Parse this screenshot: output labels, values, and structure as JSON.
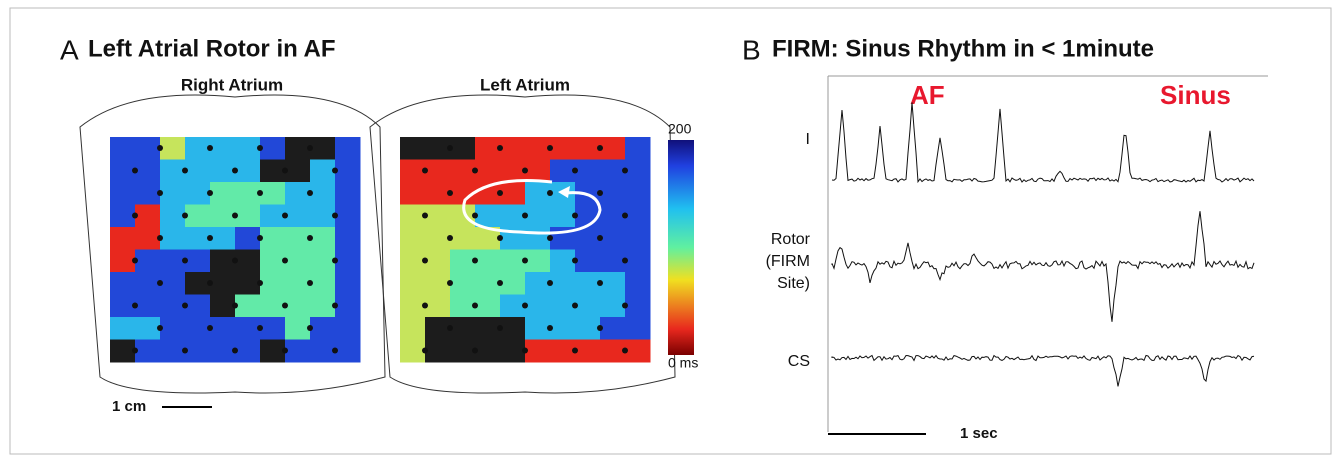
{
  "panel_a": {
    "letter": "A",
    "title": "Left Atrial Rotor in AF",
    "maps": [
      {
        "label": "Right Atrium"
      },
      {
        "label": "Left Atrium"
      }
    ],
    "colorbar": {
      "max": "200",
      "min": "0 ms"
    },
    "scale_bar": "1 cm"
  },
  "panel_b": {
    "letter": "B",
    "title": "FIRM: Sinus Rhythm in < 1minute",
    "annotations": [
      "AF",
      "Sinus"
    ],
    "traces": [
      {
        "lines": [
          "I"
        ]
      },
      {
        "lines": [
          "Rotor",
          "(FIRM",
          "Site)"
        ]
      },
      {
        "lines": [
          "CS"
        ]
      }
    ],
    "scale_bar": "1 sec"
  }
}
